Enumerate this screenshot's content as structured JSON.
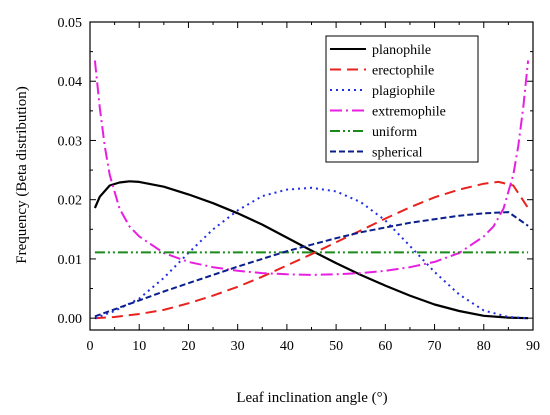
{
  "chart_data": {
    "type": "line",
    "xlabel": "Leaf inclination angle (°)",
    "ylabel": "Frequency (Beta distribution)",
    "xlim": [
      0,
      90
    ],
    "ylim": [
      -0.002,
      0.05
    ],
    "xticks": [
      0,
      10,
      20,
      30,
      40,
      50,
      60,
      70,
      80,
      90
    ],
    "yticks": [
      0.0,
      0.01,
      0.02,
      0.03,
      0.04,
      0.05
    ],
    "xtick_labels": [
      "0",
      "10",
      "20",
      "30",
      "40",
      "50",
      "60",
      "70",
      "80",
      "90"
    ],
    "ytick_labels": [
      "0.00",
      "0.01",
      "0.02",
      "0.03",
      "0.04",
      "0.05"
    ],
    "grid": false,
    "legend_position": "top-right",
    "series": [
      {
        "name": "planophile",
        "color": "#000000",
        "dash": "solid",
        "x": [
          1,
          2,
          4,
          6,
          8,
          10,
          15,
          20,
          25,
          30,
          35,
          40,
          45,
          50,
          55,
          60,
          65,
          70,
          75,
          80,
          85,
          89
        ],
        "y": [
          0.0186,
          0.0205,
          0.0224,
          0.0229,
          0.0231,
          0.023,
          0.0222,
          0.0209,
          0.0194,
          0.0177,
          0.0158,
          0.0136,
          0.0114,
          0.0093,
          0.0073,
          0.0055,
          0.0038,
          0.0023,
          0.0012,
          0.0004,
          0.0001,
          0.0
        ]
      },
      {
        "name": "erectophile",
        "color": "#e8231f",
        "dash": "dash",
        "x": [
          1,
          5,
          10,
          15,
          20,
          25,
          30,
          35,
          40,
          45,
          50,
          55,
          60,
          65,
          70,
          75,
          80,
          83,
          86,
          89
        ],
        "y": [
          0.0,
          0.0002,
          0.0007,
          0.0014,
          0.0025,
          0.0038,
          0.0053,
          0.007,
          0.0089,
          0.0108,
          0.0128,
          0.0148,
          0.0168,
          0.0187,
          0.0204,
          0.0217,
          0.0227,
          0.023,
          0.0224,
          0.0186
        ]
      },
      {
        "name": "plagiophile",
        "color": "#1f2de8",
        "dash": "dot",
        "x": [
          1,
          5,
          10,
          15,
          20,
          25,
          30,
          35,
          40,
          45,
          50,
          55,
          60,
          65,
          70,
          75,
          80,
          85,
          89
        ],
        "y": [
          0.0,
          0.0012,
          0.0033,
          0.0068,
          0.011,
          0.015,
          0.0182,
          0.0206,
          0.0217,
          0.022,
          0.0214,
          0.0196,
          0.0165,
          0.0122,
          0.0078,
          0.004,
          0.0013,
          0.0002,
          0.0
        ]
      },
      {
        "name": "extremophile",
        "color": "#e81fe0",
        "dash": "dashdot",
        "x": [
          1,
          2,
          3,
          4,
          6,
          8,
          10,
          15,
          20,
          25,
          30,
          35,
          40,
          45,
          50,
          55,
          60,
          65,
          70,
          75,
          80,
          82,
          84,
          86,
          87,
          88,
          89
        ],
        "y": [
          0.0435,
          0.0355,
          0.029,
          0.0242,
          0.0185,
          0.0155,
          0.0138,
          0.011,
          0.0095,
          0.0086,
          0.008,
          0.0076,
          0.0074,
          0.0073,
          0.0074,
          0.0076,
          0.008,
          0.0086,
          0.0095,
          0.011,
          0.0138,
          0.0155,
          0.0185,
          0.0242,
          0.029,
          0.0355,
          0.0435
        ]
      },
      {
        "name": "uniform",
        "color": "#1a8a1a",
        "dash": "dashdotdot",
        "x": [
          1,
          89
        ],
        "y": [
          0.0111,
          0.0111
        ]
      },
      {
        "name": "spherical",
        "color": "#0a1f8c",
        "dash": "shortdash",
        "x": [
          1,
          5,
          10,
          15,
          20,
          25,
          30,
          35,
          40,
          45,
          50,
          55,
          60,
          65,
          70,
          75,
          80,
          85,
          89
        ],
        "y": [
          0.0003,
          0.0015,
          0.003,
          0.0045,
          0.0059,
          0.0073,
          0.0087,
          0.01,
          0.0113,
          0.0124,
          0.0135,
          0.0145,
          0.0153,
          0.0161,
          0.0167,
          0.0173,
          0.0177,
          0.0179,
          0.0156
        ]
      }
    ]
  }
}
